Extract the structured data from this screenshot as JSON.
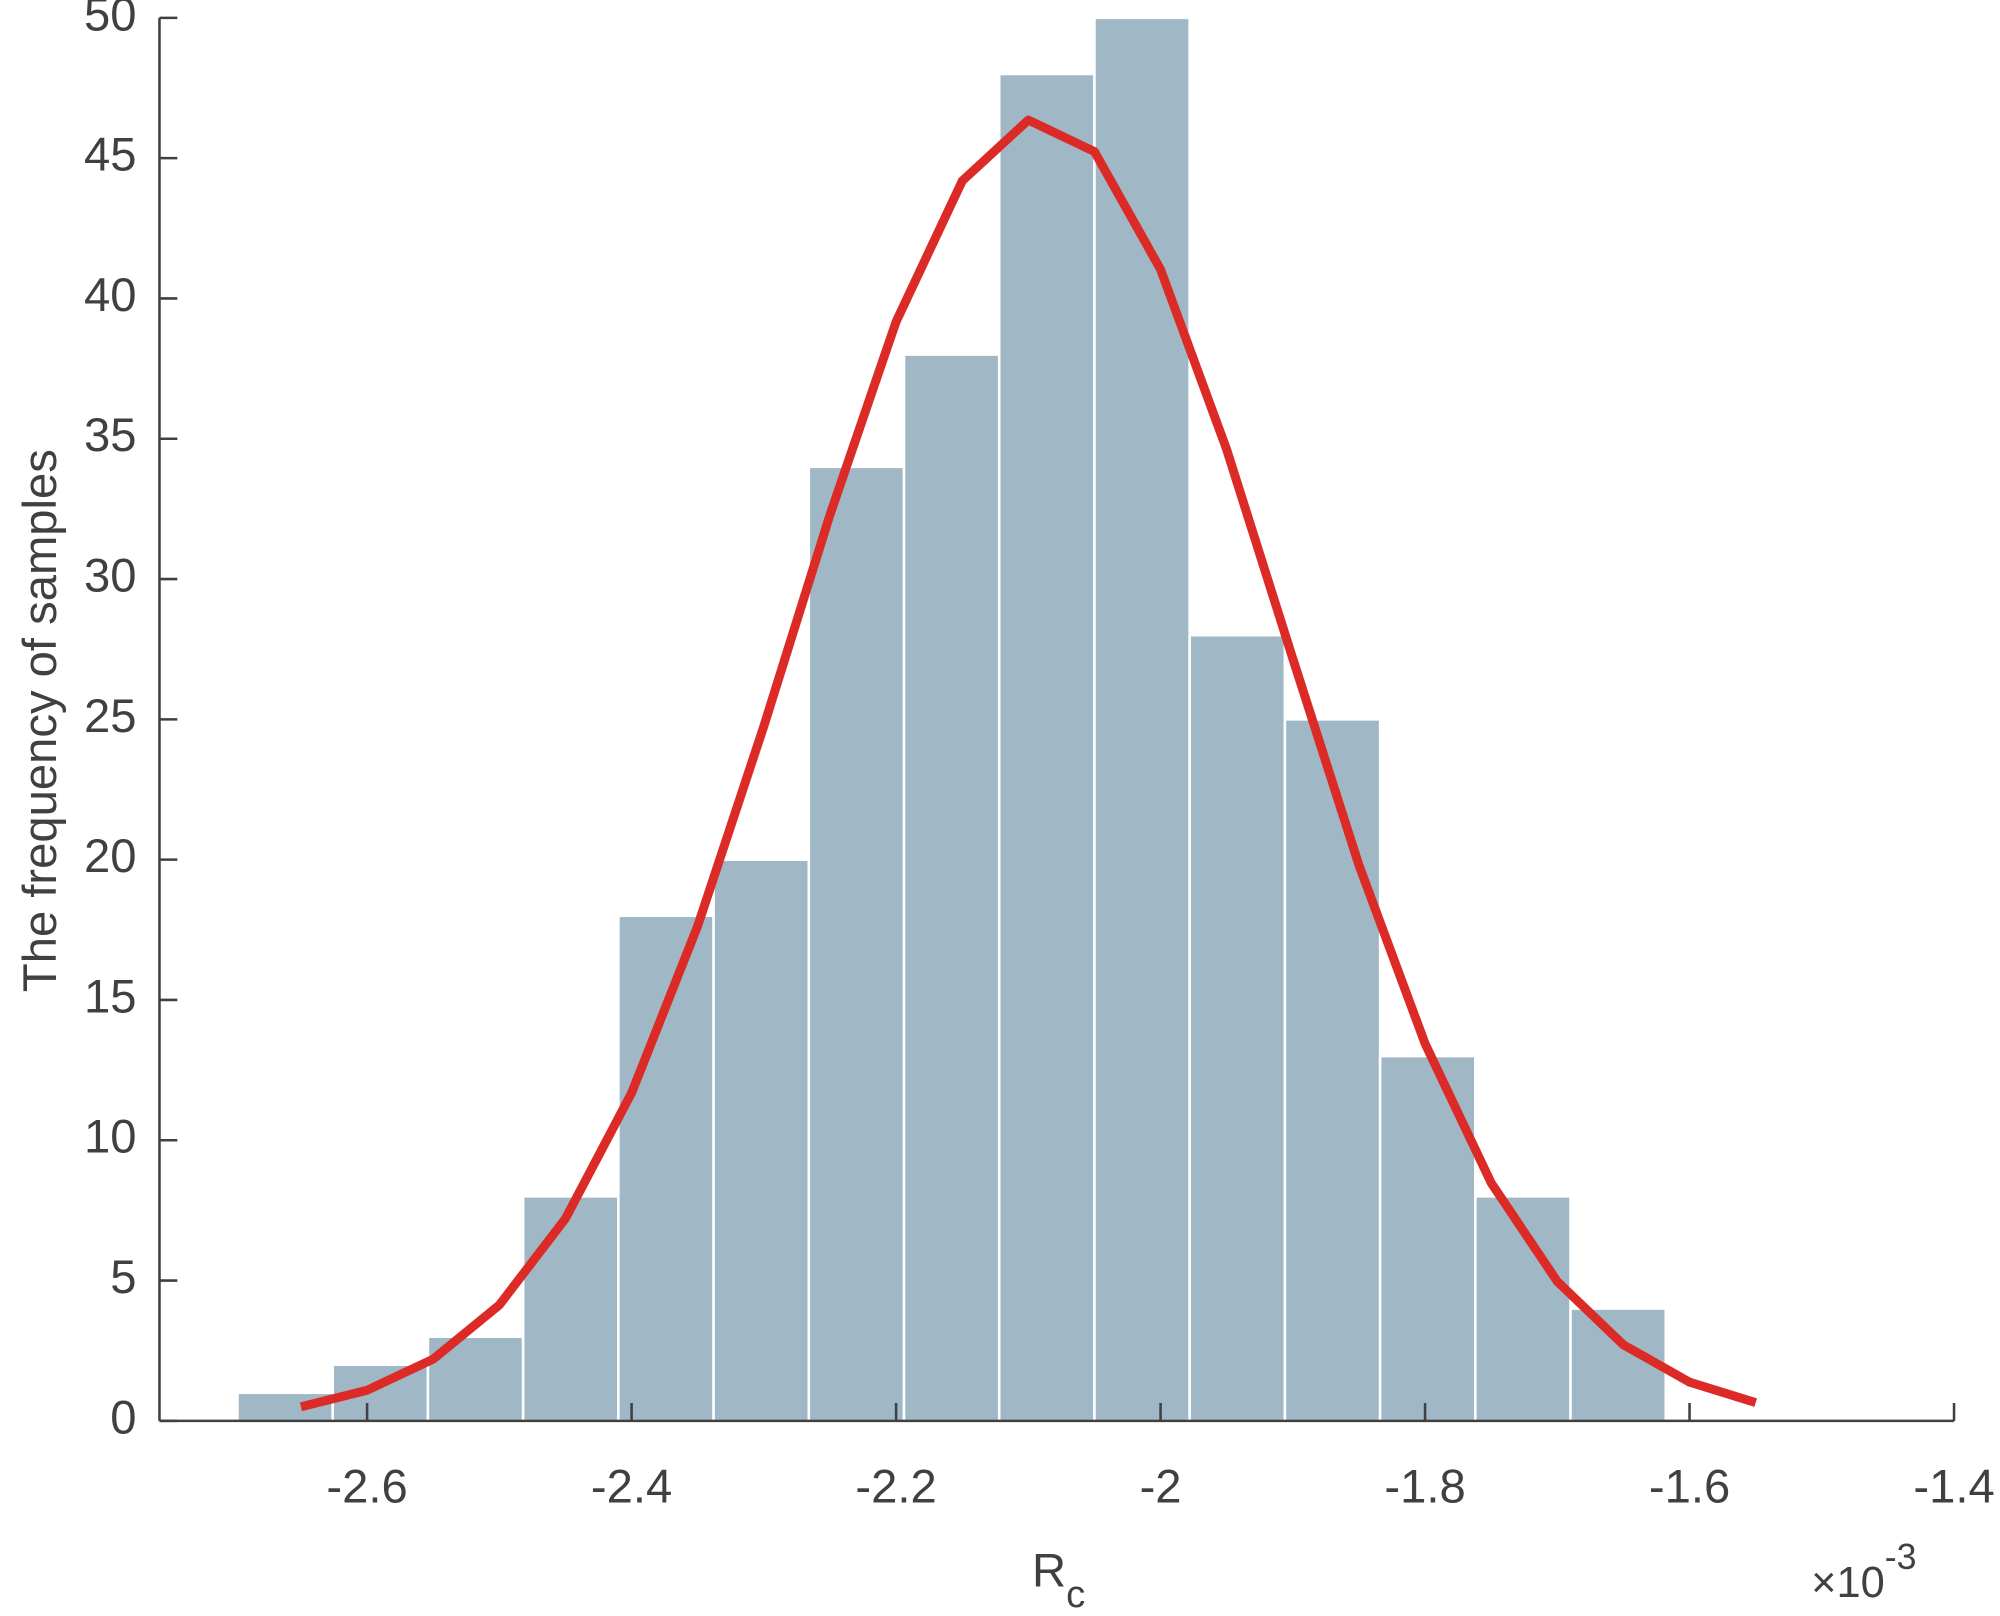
{
  "chart_data": {
    "type": "histogram",
    "xlabel": "R",
    "xlabel_sub": "c",
    "ylabel": "The frequency of samples",
    "x_multiplier": "×10",
    "x_exponent": "-3",
    "bins": [
      -2.698,
      -2.626,
      -2.554,
      -2.482,
      -2.41,
      -2.338,
      -2.266,
      -2.194,
      -2.122,
      -2.05,
      -1.978,
      -1.906,
      -1.834,
      -1.762,
      -1.69,
      -1.618
    ],
    "counts": [
      1,
      2,
      3,
      8,
      18,
      20,
      34,
      38,
      48,
      50,
      28,
      25,
      13,
      8,
      4
    ],
    "color": "#a0b8c6",
    "fit": {
      "color": "#dc2a26",
      "x": [
        -2.65,
        -2.6,
        -2.55,
        -2.5,
        -2.45,
        -2.4,
        -2.35,
        -2.3,
        -2.25,
        -2.2,
        -2.15,
        -2.1,
        -2.05,
        -2.0,
        -1.95,
        -1.9,
        -1.85,
        -1.8,
        -1.75,
        -1.7,
        -1.65,
        -1.6,
        -1.55
      ],
      "values": [
        0.5,
        1.09,
        2.2,
        4.13,
        7.21,
        11.69,
        17.64,
        24.75,
        32.29,
        39.17,
        44.19,
        46.36,
        45.23,
        41.03,
        34.62,
        27.16,
        19.81,
        13.44,
        8.48,
        4.97,
        2.71,
        1.38,
        0.65
      ]
    },
    "xlim": [
      -2.757,
      -1.4
    ],
    "ylim": [
      0,
      50
    ],
    "xticks": [
      -2.6,
      -2.4,
      -2.2,
      -2,
      -1.8,
      -1.6,
      -1.4
    ],
    "yticks": [
      0,
      5,
      10,
      15,
      20,
      25,
      30,
      35,
      40,
      45,
      50
    ]
  }
}
